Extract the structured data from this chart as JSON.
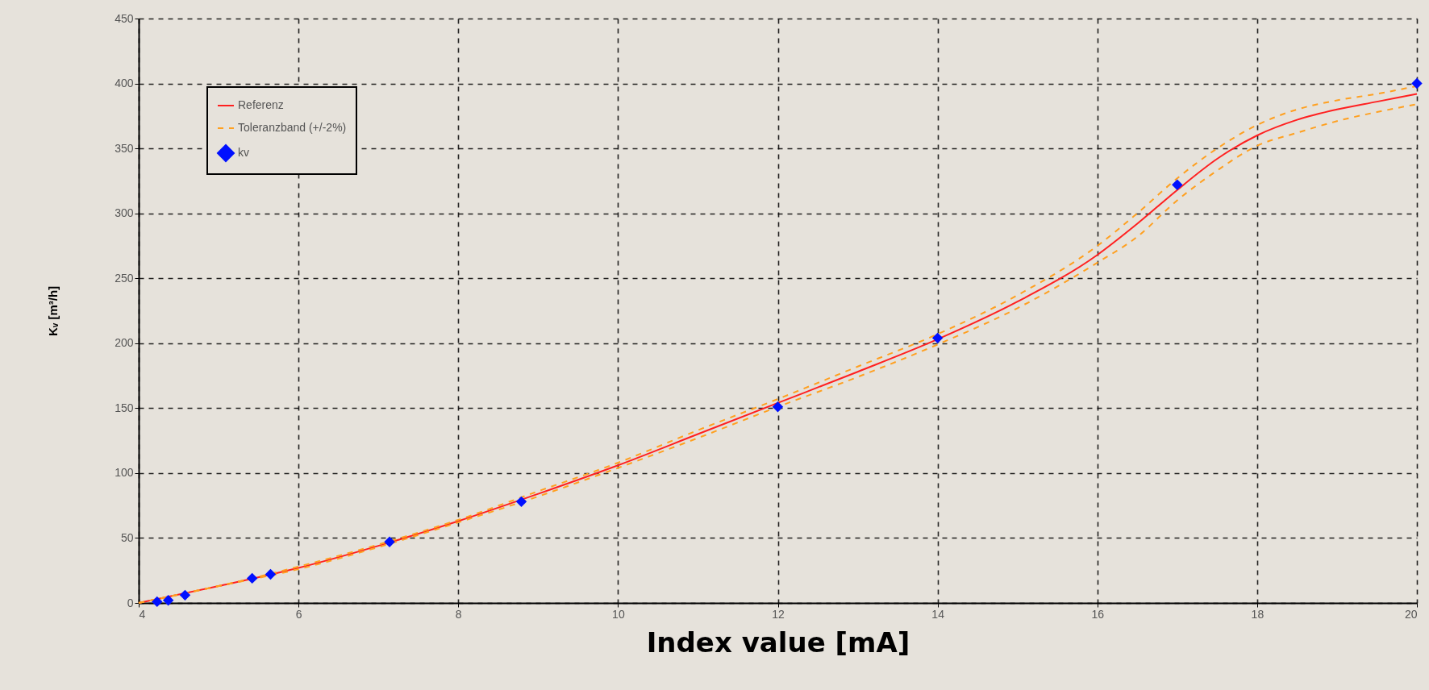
{
  "chart_data": {
    "type": "line",
    "xlabel": "Index value [mA]",
    "ylabel": "Kᵥ [m³/h]",
    "xlim": [
      4,
      20
    ],
    "xticks": [
      4,
      6,
      8,
      10,
      12,
      14,
      16,
      18,
      20
    ],
    "ylim": [
      0,
      450
    ],
    "yticks": [
      0,
      50,
      100,
      150,
      200,
      250,
      300,
      350,
      400,
      450
    ],
    "grid": true,
    "legend": "top left",
    "series": [
      {
        "name": "Referenz",
        "line_style": "solid",
        "color": "#ff2020",
        "x": [
          4,
          5,
          6,
          7,
          8,
          9,
          10,
          11,
          12,
          13,
          14,
          15,
          16,
          16.5,
          17,
          17.5,
          18,
          18.5,
          19,
          19.5,
          20
        ],
        "values": [
          0,
          13,
          27,
          44,
          63,
          84,
          106,
          130,
          154,
          178,
          203,
          232,
          268,
          292,
          318,
          342,
          360,
          372,
          380,
          386,
          392
        ]
      },
      {
        "name": "Toleranzband (+/-2%)",
        "line_style": "dashed",
        "color": "#ffa020",
        "x": [
          4,
          5,
          6,
          7,
          8,
          9,
          10,
          11,
          12,
          13,
          14,
          15,
          16,
          16.5,
          17,
          17.5,
          18,
          18.5,
          19,
          19.5,
          20
        ],
        "values": [
          0,
          13,
          28,
          45,
          64,
          86,
          108,
          133,
          157,
          182,
          207,
          237,
          275,
          300,
          327,
          350,
          368,
          380,
          387,
          392,
          398
        ]
      },
      {
        "line_style": "dashed",
        "color": "#ffa020",
        "x": [
          4,
          5,
          6,
          7,
          8,
          9,
          10,
          11,
          12,
          13,
          14,
          15,
          16,
          16.5,
          17,
          17.5,
          18,
          18.5,
          19,
          19.5,
          20
        ],
        "values": [
          0,
          13,
          26,
          43,
          62,
          82,
          104,
          127,
          151,
          174,
          199,
          227,
          262,
          282,
          310,
          333,
          352,
          362,
          371,
          378,
          384
        ]
      },
      {
        "name": "kv",
        "type": "scatter",
        "marker": "diamond",
        "color": "#0010ff",
        "x": [
          4.23,
          4.37,
          4.58,
          5.42,
          5.65,
          7.14,
          8.79,
          12,
          14,
          17,
          20
        ],
        "values": [
          1,
          2,
          6,
          19,
          22,
          47,
          78,
          151,
          204,
          322,
          400
        ]
      }
    ]
  }
}
